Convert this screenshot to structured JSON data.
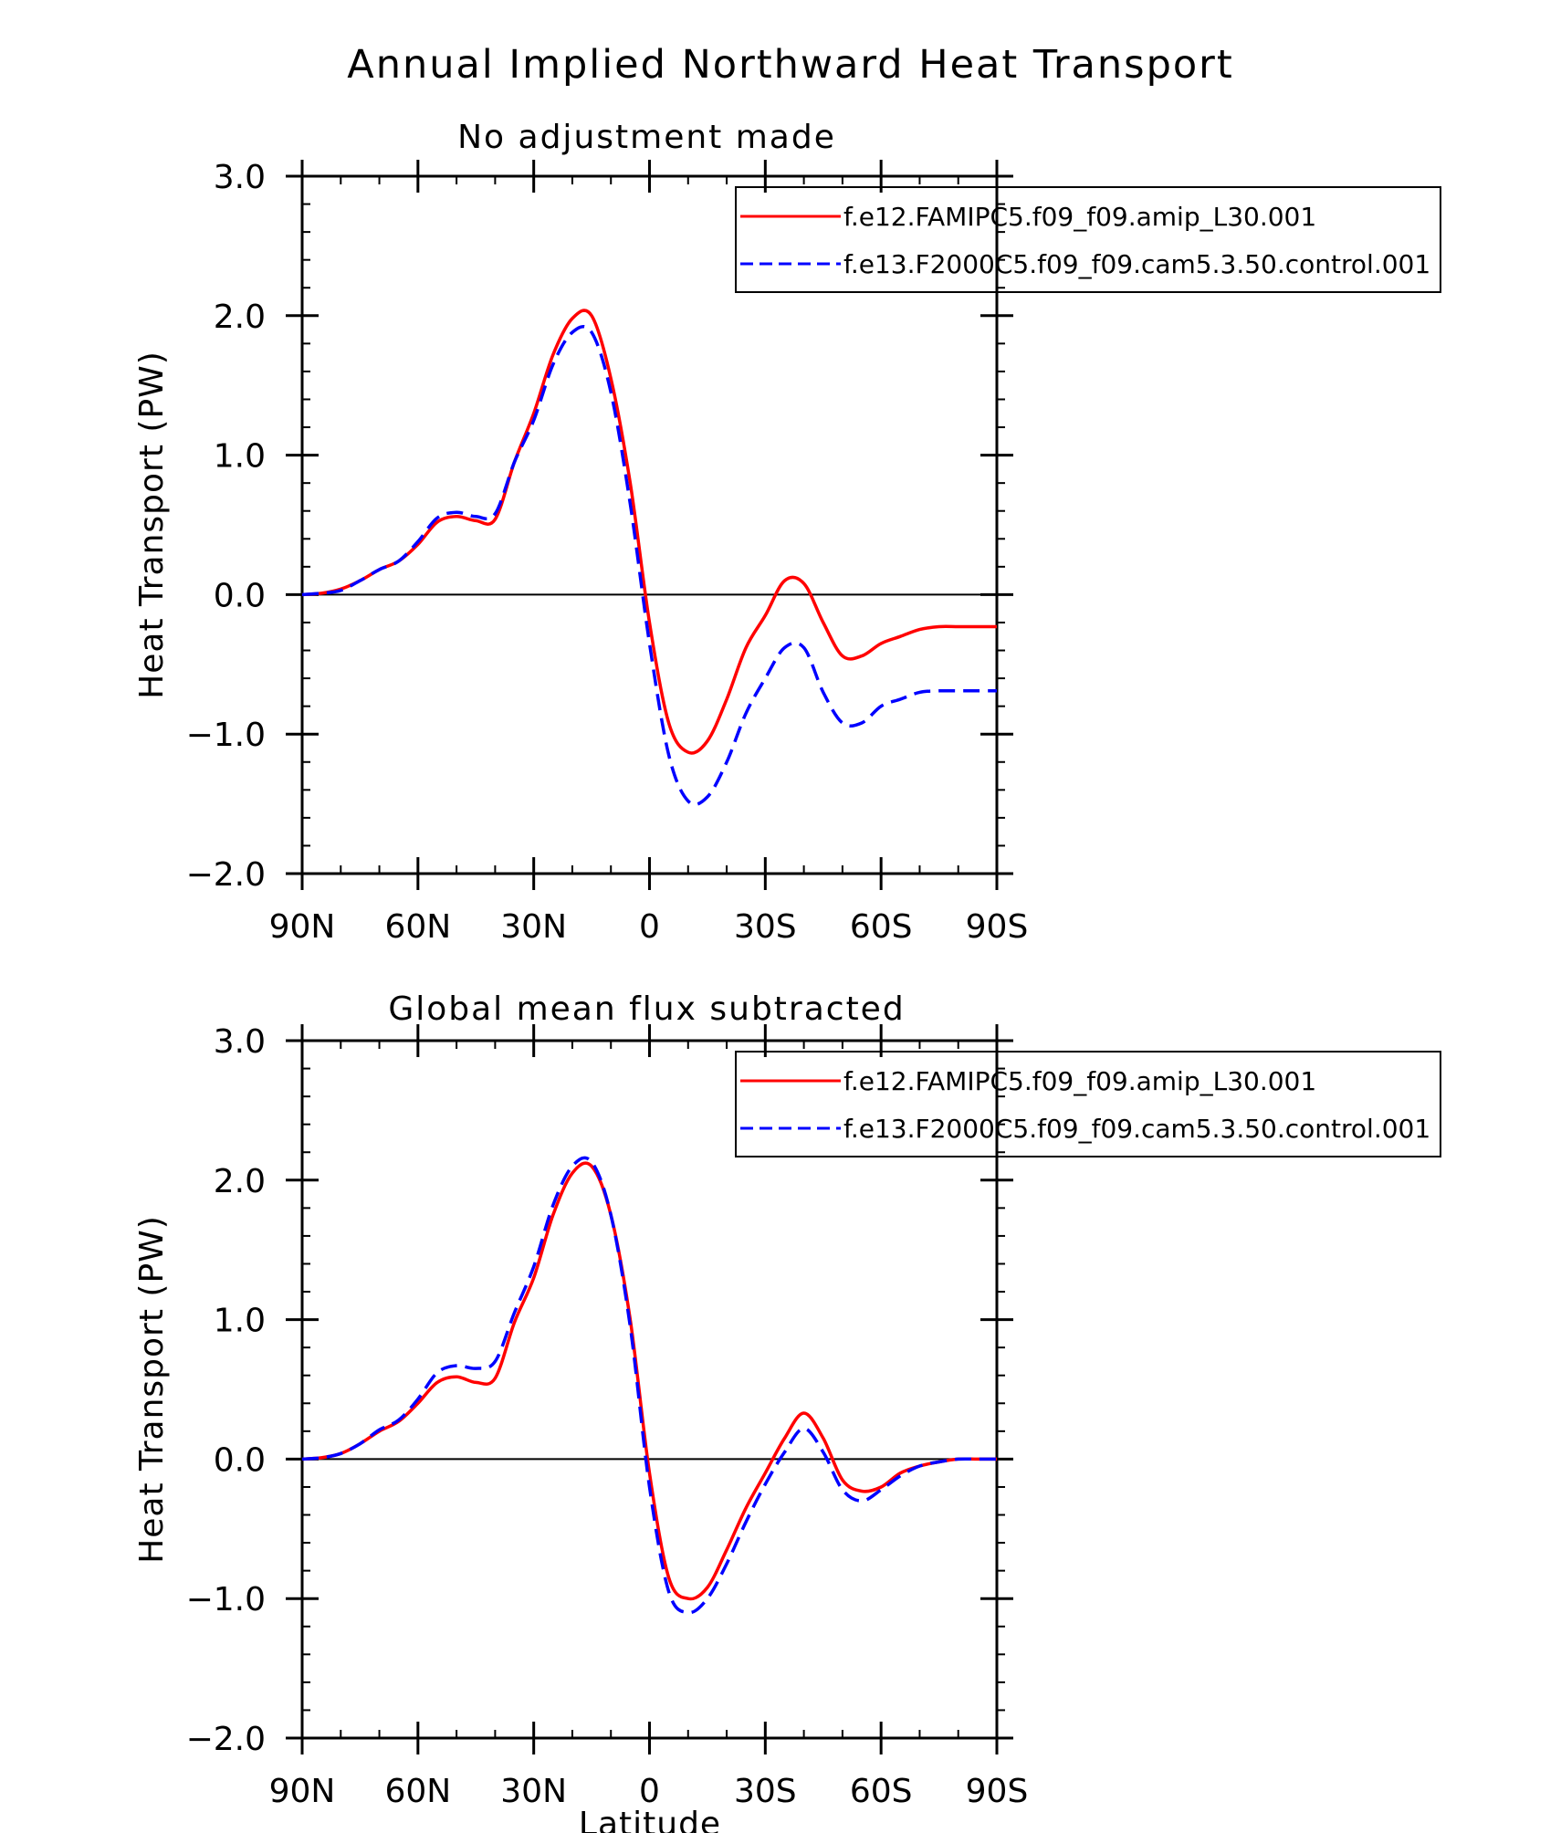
{
  "figure_title": "Annual Implied Northward Heat Transport",
  "x_axis_title": "Latitude",
  "colors": {
    "series_1": "#ff0000",
    "series_2": "#0000ff",
    "axis": "#000000"
  },
  "chart_data": [
    {
      "type": "line",
      "title": "No adjustment made",
      "xlabel": "",
      "ylabel": "Heat Transport (PW)",
      "xlim": [
        -90,
        90
      ],
      "ylim": [
        -2.0,
        3.0
      ],
      "x_direction": "north-to-south",
      "xticks": [
        -90,
        -60,
        -30,
        0,
        30,
        60,
        90
      ],
      "xtick_labels": [
        "90N",
        "60N",
        "30N",
        "0",
        "30S",
        "60S",
        "90S"
      ],
      "yticks": [
        3.0,
        2.0,
        1.0,
        0.0,
        -1.0,
        -2.0
      ],
      "ytick_labels": [
        "3.0",
        "2.0",
        "1.0",
        "0.0",
        "−1.0",
        "−2.0"
      ],
      "reference_line": 0.0,
      "legend_position": "top-right",
      "series": [
        {
          "name": "f.e12.FAMIPC5.f09_f09.amip_L30.001",
          "style": "solid",
          "x": [
            -90,
            -85,
            -80,
            -75,
            -70,
            -65,
            -60,
            -55,
            -50,
            -45,
            -40,
            -35,
            -30,
            -25,
            -20,
            -15,
            -10,
            -5,
            0,
            5,
            10,
            15,
            20,
            25,
            30,
            35,
            40,
            45,
            50,
            55,
            60,
            65,
            70,
            75,
            80,
            85,
            90
          ],
          "values": [
            0.0,
            0.01,
            0.04,
            0.1,
            0.18,
            0.24,
            0.36,
            0.52,
            0.56,
            0.53,
            0.54,
            0.95,
            1.3,
            1.72,
            1.98,
            2.0,
            1.55,
            0.8,
            -0.2,
            -0.92,
            -1.13,
            -1.05,
            -0.75,
            -0.38,
            -0.15,
            0.1,
            0.08,
            -0.2,
            -0.44,
            -0.44,
            -0.35,
            -0.3,
            -0.25,
            -0.23,
            -0.23,
            -0.23,
            -0.23
          ]
        },
        {
          "name": "f.e13.F2000C5.f09_f09.cam5.3.50.control.001",
          "style": "dashed",
          "x": [
            -90,
            -85,
            -80,
            -75,
            -70,
            -65,
            -60,
            -55,
            -50,
            -45,
            -40,
            -35,
            -30,
            -25,
            -20,
            -15,
            -10,
            -5,
            0,
            5,
            10,
            15,
            20,
            25,
            30,
            35,
            40,
            45,
            50,
            55,
            60,
            65,
            70,
            75,
            80,
            85,
            90
          ],
          "values": [
            0.0,
            0.01,
            0.03,
            0.1,
            0.18,
            0.24,
            0.38,
            0.55,
            0.59,
            0.56,
            0.58,
            0.95,
            1.25,
            1.65,
            1.88,
            1.88,
            1.45,
            0.65,
            -0.35,
            -1.15,
            -1.48,
            -1.45,
            -1.2,
            -0.85,
            -0.6,
            -0.38,
            -0.38,
            -0.7,
            -0.92,
            -0.92,
            -0.8,
            -0.75,
            -0.7,
            -0.69,
            -0.69,
            -0.69,
            -0.69
          ]
        }
      ]
    },
    {
      "type": "line",
      "title": "Global mean flux subtracted",
      "xlabel": "Latitude",
      "ylabel": "Heat Transport (PW)",
      "xlim": [
        -90,
        90
      ],
      "ylim": [
        -2.0,
        3.0
      ],
      "x_direction": "north-to-south",
      "xticks": [
        -90,
        -60,
        -30,
        0,
        30,
        60,
        90
      ],
      "xtick_labels": [
        "90N",
        "60N",
        "30N",
        "0",
        "30S",
        "60S",
        "90S"
      ],
      "yticks": [
        3.0,
        2.0,
        1.0,
        0.0,
        -1.0,
        -2.0
      ],
      "ytick_labels": [
        "3.0",
        "2.0",
        "1.0",
        "0.0",
        "−1.0",
        "−2.0"
      ],
      "reference_line": 0.0,
      "legend_position": "top-right",
      "series": [
        {
          "name": "f.e12.FAMIPC5.f09_f09.amip_L30.001",
          "style": "solid",
          "x": [
            -90,
            -85,
            -80,
            -75,
            -70,
            -65,
            -60,
            -55,
            -50,
            -45,
            -40,
            -35,
            -30,
            -25,
            -20,
            -15,
            -10,
            -5,
            0,
            5,
            10,
            15,
            20,
            25,
            30,
            35,
            40,
            45,
            50,
            55,
            60,
            65,
            70,
            75,
            80,
            85,
            90
          ],
          "values": [
            0.0,
            0.01,
            0.04,
            0.11,
            0.2,
            0.27,
            0.4,
            0.55,
            0.59,
            0.55,
            0.58,
            0.98,
            1.3,
            1.75,
            2.05,
            2.1,
            1.75,
            1.0,
            -0.1,
            -0.85,
            -1.0,
            -0.92,
            -0.65,
            -0.35,
            -0.1,
            0.15,
            0.33,
            0.15,
            -0.15,
            -0.23,
            -0.2,
            -0.1,
            -0.05,
            -0.02,
            0.0,
            0.0,
            0.0
          ]
        },
        {
          "name": "f.e13.F2000C5.f09_f09.cam5.3.50.control.001",
          "style": "dashed",
          "x": [
            -90,
            -85,
            -80,
            -75,
            -70,
            -65,
            -60,
            -55,
            -50,
            -45,
            -40,
            -35,
            -30,
            -25,
            -20,
            -15,
            -10,
            -5,
            0,
            5,
            10,
            15,
            20,
            25,
            30,
            35,
            40,
            45,
            50,
            55,
            60,
            65,
            70,
            75,
            80,
            85,
            90
          ],
          "values": [
            0.0,
            0.01,
            0.04,
            0.11,
            0.21,
            0.28,
            0.43,
            0.62,
            0.67,
            0.65,
            0.7,
            1.05,
            1.38,
            1.82,
            2.1,
            2.13,
            1.75,
            0.95,
            -0.2,
            -0.95,
            -1.1,
            -1.0,
            -0.75,
            -0.45,
            -0.18,
            0.05,
            0.22,
            0.05,
            -0.22,
            -0.3,
            -0.22,
            -0.12,
            -0.05,
            -0.02,
            0.0,
            0.0,
            0.0
          ]
        }
      ]
    }
  ]
}
